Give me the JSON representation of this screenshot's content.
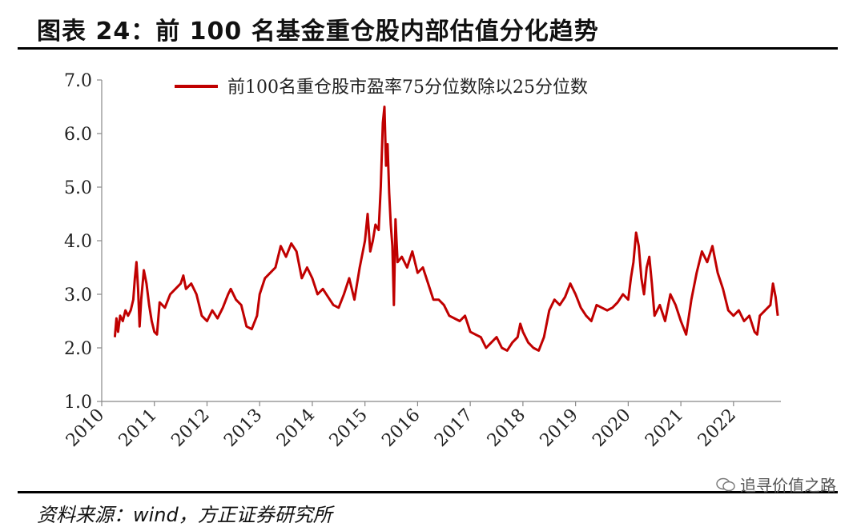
{
  "title": "图表 24：前 100 名基金重仓股内部估值分化趋势",
  "source": "资料来源：wind，方正证券研究所",
  "watermark": "追寻价值之路",
  "chart_data": {
    "type": "line",
    "title": "图表 24：前 100 名基金重仓股内部估值分化趋势",
    "xlabel": "",
    "ylabel": "",
    "ylim": [
      1.0,
      7.0
    ],
    "xlim": [
      2010.0,
      2022.9
    ],
    "yticks": [
      "1.0",
      "2.0",
      "3.0",
      "4.0",
      "5.0",
      "6.0",
      "7.0"
    ],
    "xticks": [
      "2010",
      "2011",
      "2012",
      "2013",
      "2014",
      "2015",
      "2016",
      "2017",
      "2018",
      "2019",
      "2020",
      "2021",
      "2022"
    ],
    "grid": false,
    "legend": "top",
    "series": [
      {
        "name": "前100名重仓股市盈率75分位数除以25分位数",
        "color": "#c00000",
        "points": [
          [
            2010.25,
            2.2
          ],
          [
            2010.28,
            2.55
          ],
          [
            2010.31,
            2.3
          ],
          [
            2010.35,
            2.6
          ],
          [
            2010.4,
            2.5
          ],
          [
            2010.45,
            2.7
          ],
          [
            2010.5,
            2.6
          ],
          [
            2010.55,
            2.7
          ],
          [
            2010.6,
            2.9
          ],
          [
            2010.63,
            3.3
          ],
          [
            2010.66,
            3.6
          ],
          [
            2010.69,
            3.1
          ],
          [
            2010.72,
            2.4
          ],
          [
            2010.75,
            2.9
          ],
          [
            2010.8,
            3.45
          ],
          [
            2010.85,
            3.2
          ],
          [
            2010.9,
            2.8
          ],
          [
            2010.95,
            2.5
          ],
          [
            2011.0,
            2.3
          ],
          [
            2011.05,
            2.25
          ],
          [
            2011.1,
            2.85
          ],
          [
            2011.2,
            2.75
          ],
          [
            2011.3,
            3.0
          ],
          [
            2011.4,
            3.1
          ],
          [
            2011.5,
            3.2
          ],
          [
            2011.55,
            3.35
          ],
          [
            2011.6,
            3.1
          ],
          [
            2011.7,
            3.2
          ],
          [
            2011.8,
            3.0
          ],
          [
            2011.9,
            2.6
          ],
          [
            2012.0,
            2.5
          ],
          [
            2012.1,
            2.7
          ],
          [
            2012.2,
            2.55
          ],
          [
            2012.3,
            2.75
          ],
          [
            2012.4,
            3.0
          ],
          [
            2012.45,
            3.1
          ],
          [
            2012.55,
            2.9
          ],
          [
            2012.65,
            2.8
          ],
          [
            2012.75,
            2.4
          ],
          [
            2012.85,
            2.35
          ],
          [
            2012.95,
            2.6
          ],
          [
            2013.0,
            3.0
          ],
          [
            2013.1,
            3.3
          ],
          [
            2013.2,
            3.4
          ],
          [
            2013.3,
            3.5
          ],
          [
            2013.4,
            3.9
          ],
          [
            2013.5,
            3.7
          ],
          [
            2013.6,
            3.95
          ],
          [
            2013.7,
            3.8
          ],
          [
            2013.8,
            3.3
          ],
          [
            2013.9,
            3.5
          ],
          [
            2014.0,
            3.3
          ],
          [
            2014.1,
            3.0
          ],
          [
            2014.2,
            3.1
          ],
          [
            2014.3,
            2.95
          ],
          [
            2014.4,
            2.8
          ],
          [
            2014.5,
            2.75
          ],
          [
            2014.6,
            3.0
          ],
          [
            2014.7,
            3.3
          ],
          [
            2014.8,
            2.9
          ],
          [
            2014.9,
            3.5
          ],
          [
            2015.0,
            4.0
          ],
          [
            2015.05,
            4.5
          ],
          [
            2015.1,
            3.8
          ],
          [
            2015.15,
            4.0
          ],
          [
            2015.2,
            4.3
          ],
          [
            2015.26,
            4.2
          ],
          [
            2015.3,
            5.0
          ],
          [
            2015.34,
            6.2
          ],
          [
            2015.37,
            6.5
          ],
          [
            2015.4,
            5.4
          ],
          [
            2015.43,
            5.8
          ],
          [
            2015.46,
            4.9
          ],
          [
            2015.49,
            4.3
          ],
          [
            2015.52,
            3.9
          ],
          [
            2015.55,
            2.8
          ],
          [
            2015.58,
            4.4
          ],
          [
            2015.62,
            3.6
          ],
          [
            2015.7,
            3.7
          ],
          [
            2015.8,
            3.5
          ],
          [
            2015.9,
            3.8
          ],
          [
            2016.0,
            3.4
          ],
          [
            2016.1,
            3.5
          ],
          [
            2016.2,
            3.2
          ],
          [
            2016.3,
            2.9
          ],
          [
            2016.4,
            2.9
          ],
          [
            2016.5,
            2.8
          ],
          [
            2016.6,
            2.6
          ],
          [
            2016.7,
            2.55
          ],
          [
            2016.8,
            2.5
          ],
          [
            2016.9,
            2.6
          ],
          [
            2017.0,
            2.3
          ],
          [
            2017.1,
            2.25
          ],
          [
            2017.2,
            2.2
          ],
          [
            2017.3,
            2.0
          ],
          [
            2017.4,
            2.1
          ],
          [
            2017.5,
            2.2
          ],
          [
            2017.6,
            2.0
          ],
          [
            2017.7,
            1.95
          ],
          [
            2017.8,
            2.1
          ],
          [
            2017.9,
            2.2
          ],
          [
            2017.95,
            2.45
          ],
          [
            2018.0,
            2.3
          ],
          [
            2018.1,
            2.1
          ],
          [
            2018.2,
            2.0
          ],
          [
            2018.3,
            1.95
          ],
          [
            2018.4,
            2.2
          ],
          [
            2018.5,
            2.7
          ],
          [
            2018.6,
            2.9
          ],
          [
            2018.7,
            2.8
          ],
          [
            2018.8,
            2.95
          ],
          [
            2018.9,
            3.2
          ],
          [
            2019.0,
            3.0
          ],
          [
            2019.1,
            2.75
          ],
          [
            2019.2,
            2.6
          ],
          [
            2019.3,
            2.5
          ],
          [
            2019.4,
            2.8
          ],
          [
            2019.5,
            2.75
          ],
          [
            2019.6,
            2.7
          ],
          [
            2019.7,
            2.75
          ],
          [
            2019.8,
            2.85
          ],
          [
            2019.9,
            3.0
          ],
          [
            2020.0,
            2.9
          ],
          [
            2020.05,
            3.3
          ],
          [
            2020.1,
            3.6
          ],
          [
            2020.15,
            4.15
          ],
          [
            2020.2,
            3.9
          ],
          [
            2020.25,
            3.3
          ],
          [
            2020.3,
            3.0
          ],
          [
            2020.35,
            3.5
          ],
          [
            2020.4,
            3.7
          ],
          [
            2020.45,
            3.2
          ],
          [
            2020.5,
            2.6
          ],
          [
            2020.6,
            2.8
          ],
          [
            2020.7,
            2.5
          ],
          [
            2020.8,
            3.0
          ],
          [
            2020.9,
            2.8
          ],
          [
            2021.0,
            2.5
          ],
          [
            2021.1,
            2.25
          ],
          [
            2021.2,
            2.9
          ],
          [
            2021.3,
            3.4
          ],
          [
            2021.4,
            3.8
          ],
          [
            2021.5,
            3.6
          ],
          [
            2021.6,
            3.9
          ],
          [
            2021.7,
            3.4
          ],
          [
            2021.8,
            3.1
          ],
          [
            2021.9,
            2.7
          ],
          [
            2022.0,
            2.6
          ],
          [
            2022.1,
            2.7
          ],
          [
            2022.2,
            2.5
          ],
          [
            2022.3,
            2.6
          ],
          [
            2022.4,
            2.3
          ],
          [
            2022.45,
            2.25
          ],
          [
            2022.5,
            2.6
          ],
          [
            2022.6,
            2.7
          ],
          [
            2022.7,
            2.8
          ],
          [
            2022.75,
            3.2
          ],
          [
            2022.8,
            2.95
          ],
          [
            2022.84,
            2.6
          ]
        ]
      }
    ]
  }
}
